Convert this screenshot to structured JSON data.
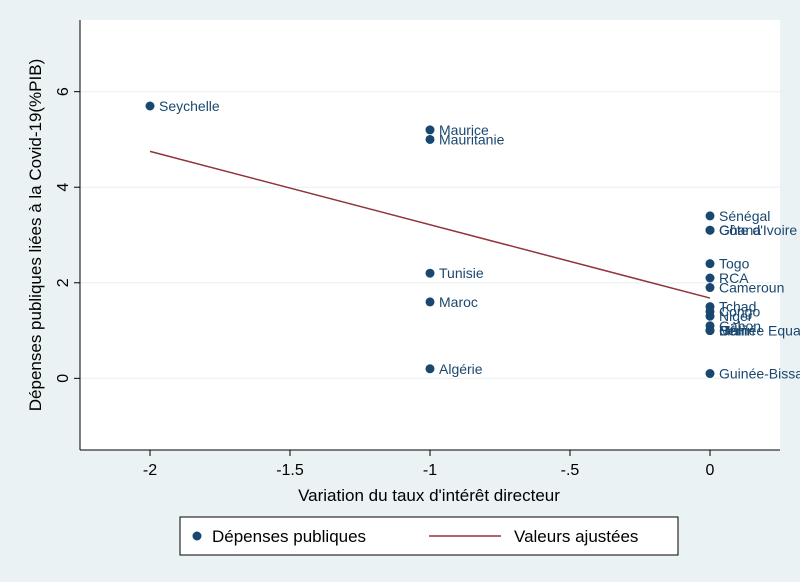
{
  "chart_data": {
    "type": "scatter",
    "title": "",
    "xlabel": "Variation du taux d'intérêt directeur",
    "ylabel": "Dépenses publiques liées à la Covid-19(%PIB)",
    "xlim": [
      -2.25,
      0.25
    ],
    "ylim": [
      -1.5,
      7.5
    ],
    "x_ticks": [
      -2,
      -1.5,
      -1,
      -0.5,
      0
    ],
    "x_tick_labels": [
      "-2",
      "-1.5",
      "-1",
      "-.5",
      "0"
    ],
    "y_ticks": [
      0,
      2,
      4,
      6
    ],
    "y_tick_labels": [
      "0",
      "2",
      "4",
      "6"
    ],
    "grid": "horizontal",
    "legend_position": "bottom",
    "series": [
      {
        "name": "Dépenses publiques",
        "color": "#1a476f",
        "points": [
          {
            "label": "Seychelle",
            "x": -2,
            "y": 5.7
          },
          {
            "label": "Maurice",
            "x": -1,
            "y": 5.2
          },
          {
            "label": "Mauritanie",
            "x": -1,
            "y": 5.0
          },
          {
            "label": "Tunisie",
            "x": -1,
            "y": 2.2
          },
          {
            "label": "Maroc",
            "x": -1,
            "y": 1.6
          },
          {
            "label": "Algérie",
            "x": -1,
            "y": 0.2
          },
          {
            "label": "Sénégal",
            "x": 0,
            "y": 3.4
          },
          {
            "label": "Côte d'Ivoire",
            "x": 0,
            "y": 3.1
          },
          {
            "label": "Ghana",
            "x": 0,
            "y": 3.1
          },
          {
            "label": "Togo",
            "x": 0,
            "y": 2.4
          },
          {
            "label": "RCA",
            "x": 0,
            "y": 2.1
          },
          {
            "label": "Cameroun",
            "x": 0,
            "y": 1.9
          },
          {
            "label": "Tchad",
            "x": 0,
            "y": 1.5
          },
          {
            "label": "Congo",
            "x": 0,
            "y": 1.4
          },
          {
            "label": "Niger",
            "x": 0,
            "y": 1.3
          },
          {
            "label": "Gabon",
            "x": 0,
            "y": 1.1
          },
          {
            "label": "Guinée Equatoriale",
            "x": 0,
            "y": 1.0
          },
          {
            "label": "Bénin",
            "x": 0,
            "y": 1.0
          },
          {
            "label": "Mali",
            "x": 0,
            "y": 1.0
          },
          {
            "label": "Guinée-Bissau",
            "x": 0,
            "y": 0.1
          }
        ]
      },
      {
        "name": "Valeurs ajustées",
        "type": "line",
        "color": "#90353b",
        "x": [
          -2,
          0
        ],
        "values": [
          4.75,
          1.68
        ]
      }
    ]
  }
}
